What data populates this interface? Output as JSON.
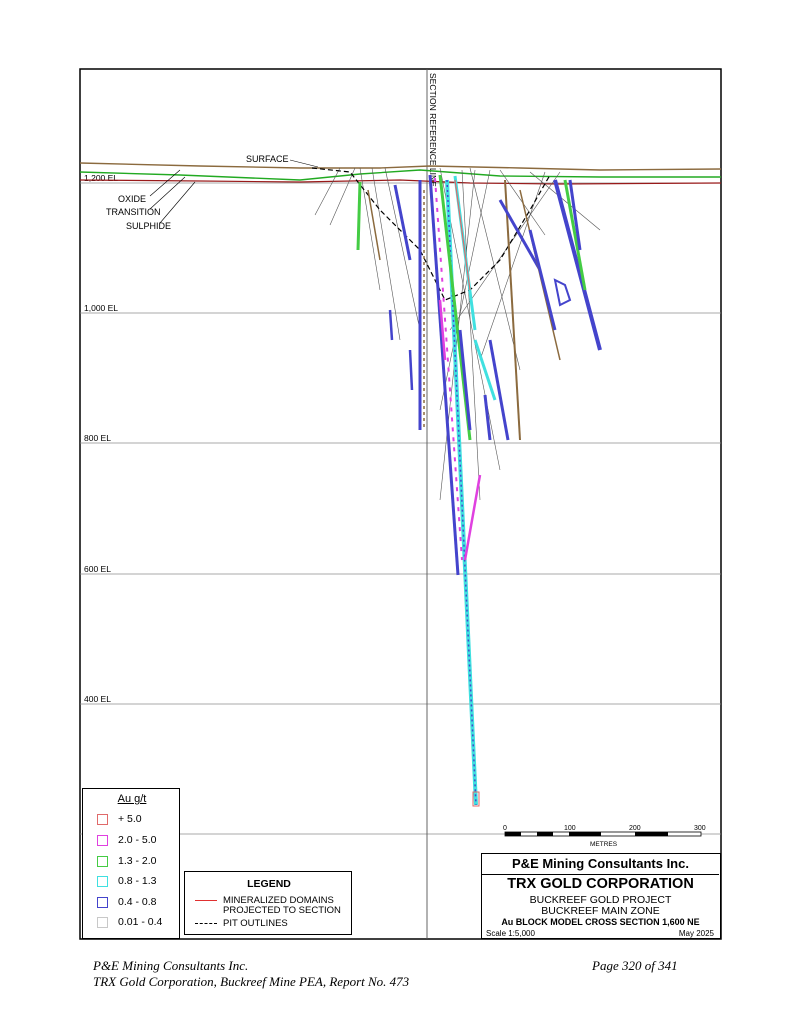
{
  "section": {
    "reference_line_label": "SECTION REFERENCE LINE",
    "surface_label": "SURFACE",
    "zone_labels": [
      "OXIDE",
      "TRANSITION",
      "SULPHIDE"
    ],
    "elevation_labels": [
      "1,200 EL",
      "1,000 EL",
      "800 EL",
      "600 EL",
      "400 EL"
    ]
  },
  "scale_bar": {
    "ticks": [
      "0",
      "100",
      "200",
      "300"
    ],
    "unit": "METRES"
  },
  "au_legend": {
    "title": "Au g/t",
    "items": [
      {
        "label": "+ 5.0",
        "color": "#e06a6a"
      },
      {
        "label": "2.0 - 5.0",
        "color": "#e040e0"
      },
      {
        "label": "1.3 - 2.0",
        "color": "#44cc44"
      },
      {
        "label": "0.8 - 1.3",
        "color": "#40e0e0"
      },
      {
        "label": "0.4 - 0.8",
        "color": "#4444cc"
      },
      {
        "label": "0.01 - 0.4",
        "color": "#c8c8c8"
      }
    ]
  },
  "general_legend": {
    "title": "LEGEND",
    "domains_line1": "MINERALIZED DOMAINS",
    "domains_line2": "PROJECTED TO SECTION",
    "pit_label": "PIT OUTLINES",
    "domain_color": "#e03030"
  },
  "title_block": {
    "company": "P&E Mining Consultants Inc.",
    "client": "TRX GOLD CORPORATION",
    "project": "BUCKREEF GOLD PROJECT",
    "zone": "BUCKREEF MAIN ZONE",
    "section_title": "Au BLOCK MODEL CROSS SECTION 1,600 NE",
    "scale": "Scale 1:5,000",
    "date": "May 2025"
  },
  "footer": {
    "left_line1": "P&E Mining Consultants Inc.",
    "left_line2": "TRX Gold Corporation, Buckreef Mine PEA, Report No. 473",
    "page": "Page 320 of 341"
  }
}
